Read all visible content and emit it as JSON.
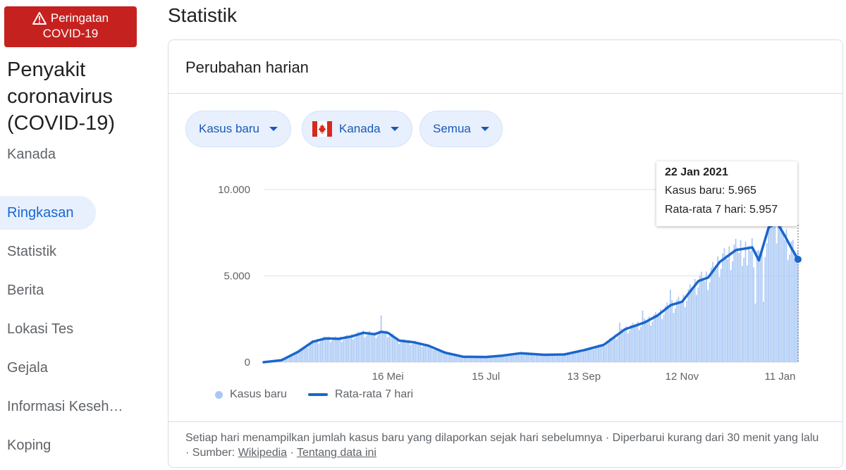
{
  "alert": {
    "line1": "Peringatan",
    "line2": "COVID-19",
    "icon": "warning-icon"
  },
  "sidebar": {
    "title_lines": [
      "Penyakit",
      "coronavirus",
      "(COVID-19)"
    ],
    "subtitle": "Kanada",
    "items": [
      {
        "label": "Ringkasan",
        "active": true
      },
      {
        "label": "Statistik",
        "active": false
      },
      {
        "label": "Berita",
        "active": false
      },
      {
        "label": "Lokasi Tes",
        "active": false
      },
      {
        "label": "Gejala",
        "active": false
      },
      {
        "label": "Informasi Keseh…",
        "active": false
      },
      {
        "label": "Koping",
        "active": false
      }
    ]
  },
  "page_title": "Statistik",
  "card": {
    "title": "Perubahan harian",
    "chips": [
      {
        "label": "Kasus baru"
      },
      {
        "label": "Kanada",
        "icon": "canada-flag-icon"
      },
      {
        "label": "Semua"
      }
    ]
  },
  "tooltip": {
    "date": "22 Jan 2021",
    "line1": "Kasus baru: 5.965",
    "line2": "Rata-rata 7 hari: 5.957"
  },
  "legend": {
    "bars": "Kasus baru",
    "line": "Rata-rata 7 hari"
  },
  "colors": {
    "bar": "#a9c8f5",
    "line": "#1a66cc",
    "grid": "#e0e0e0",
    "chip_bg": "#e8f0fe",
    "alert": "#c5221f"
  },
  "footer": {
    "text_before": "Setiap hari menampilkan jumlah kasus baru yang dilaporkan sejak hari sebelumnya · Diperbarui kurang dari 30 menit yang lalu · Sumber:",
    "source_link": "Wikipedia",
    "separator": "·",
    "about_link": "Tentang data ini"
  },
  "chart_data": {
    "type": "bar",
    "ylim": [
      0,
      10000
    ],
    "yticks": [
      {
        "value": 0,
        "label": "0"
      },
      {
        "value": 5000,
        "label": "5.000"
      },
      {
        "value": 10000,
        "label": "10.000"
      }
    ],
    "x_start": "2020-03-01",
    "x_end": "2021-01-22",
    "xticks": [
      {
        "date": "2020-05-16",
        "label": "16 Mei"
      },
      {
        "date": "2020-07-15",
        "label": "15 Jul"
      },
      {
        "date": "2020-09-13",
        "label": "13 Sep"
      },
      {
        "date": "2020-11-12",
        "label": "12 Nov"
      },
      {
        "date": "2021-01-11",
        "label": "11 Jan"
      }
    ],
    "avg_points": [
      [
        "2020-03-01",
        0
      ],
      [
        "2020-03-12",
        120
      ],
      [
        "2020-03-22",
        600
      ],
      [
        "2020-03-31",
        1180
      ],
      [
        "2020-04-08",
        1380
      ],
      [
        "2020-04-16",
        1350
      ],
      [
        "2020-04-24",
        1500
      ],
      [
        "2020-05-01",
        1700
      ],
      [
        "2020-05-08",
        1620
      ],
      [
        "2020-05-12",
        1760
      ],
      [
        "2020-05-16",
        1700
      ],
      [
        "2020-05-23",
        1250
      ],
      [
        "2020-06-01",
        1150
      ],
      [
        "2020-06-10",
        950
      ],
      [
        "2020-06-20",
        550
      ],
      [
        "2020-07-01",
        320
      ],
      [
        "2020-07-15",
        300
      ],
      [
        "2020-07-25",
        380
      ],
      [
        "2020-08-05",
        520
      ],
      [
        "2020-08-20",
        430
      ],
      [
        "2020-09-01",
        450
      ],
      [
        "2020-09-13",
        700
      ],
      [
        "2020-09-25",
        1000
      ],
      [
        "2020-10-08",
        1900
      ],
      [
        "2020-10-20",
        2300
      ],
      [
        "2020-10-28",
        2700
      ],
      [
        "2020-11-05",
        3300
      ],
      [
        "2020-11-12",
        3500
      ],
      [
        "2020-11-22",
        4700
      ],
      [
        "2020-11-28",
        4900
      ],
      [
        "2020-12-05",
        5800
      ],
      [
        "2020-12-15",
        6500
      ],
      [
        "2020-12-25",
        6650
      ],
      [
        "2020-12-29",
        5900
      ],
      [
        "2021-01-04",
        7800
      ],
      [
        "2021-01-09",
        8100
      ],
      [
        "2021-01-14",
        7300
      ],
      [
        "2021-01-18",
        6600
      ],
      [
        "2021-01-22",
        5957
      ]
    ],
    "spikes": [
      [
        "2020-05-12",
        2700
      ],
      [
        "2020-10-05",
        2300
      ],
      [
        "2020-10-19",
        3000
      ],
      [
        "2020-11-05",
        4200
      ],
      [
        "2020-12-22",
        5600
      ],
      [
        "2020-12-27",
        3400
      ],
      [
        "2021-01-01",
        3500
      ],
      [
        "2021-01-07",
        9000
      ],
      [
        "2021-01-10",
        7900
      ]
    ],
    "highlight": {
      "date": "2021-01-22",
      "new_cases": 5965,
      "average": 5957
    }
  }
}
